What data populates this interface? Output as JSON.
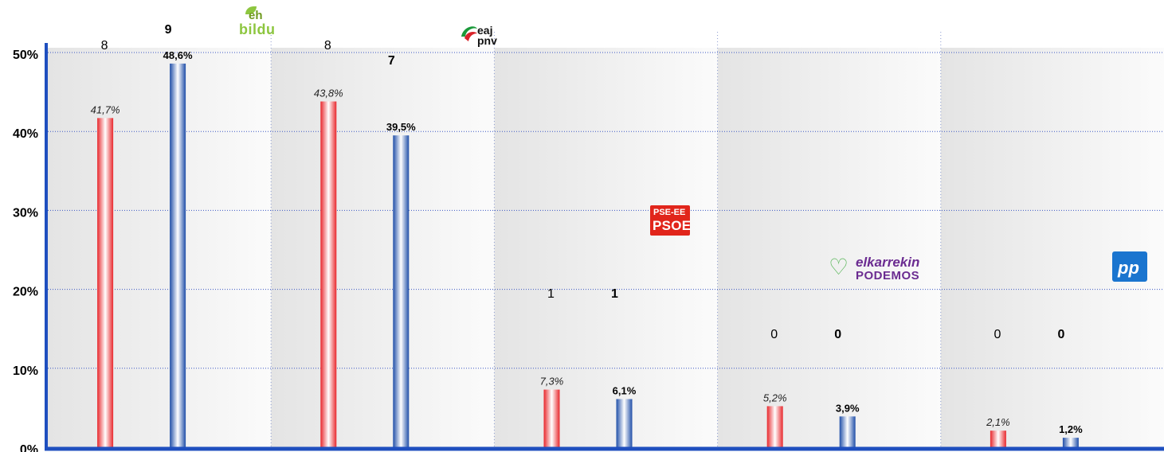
{
  "chart_data": {
    "type": "bar",
    "ylim": [
      0,
      50
    ],
    "yticks": [
      "0%",
      "10%",
      "20%",
      "30%",
      "40%",
      "50%"
    ],
    "grid": true,
    "categories": [
      "EH Bildu",
      "EAJ-PNV",
      "PSE-EE PSOE",
      "Elkarrekin Podemos",
      "PP"
    ],
    "series": [
      {
        "values": [
          41.7,
          43.8,
          7.3,
          5.2,
          2.1
        ],
        "value_labels": [
          "41,7%",
          "43,8%",
          "7,3%",
          "5,2%",
          "2,1%"
        ],
        "seats": [
          "8",
          "8",
          "1",
          "0",
          "0"
        ],
        "color": "#e8272c"
      },
      {
        "values": [
          48.6,
          39.5,
          6.1,
          3.9,
          1.2
        ],
        "value_labels": [
          "48,6%",
          "39,5%",
          "6,1%",
          "3,9%",
          "1,2%"
        ],
        "seats": [
          "9",
          "7",
          "1",
          "0",
          "0"
        ],
        "color": "#1f4ea8"
      }
    ]
  },
  "logos": {
    "bildu": {
      "line1": "eh",
      "line2": "bildu",
      "icon": "leaf-icon"
    },
    "pnv": {
      "text": "eaj\npnv",
      "icon": "flag-icon"
    },
    "psoe": {
      "line1": "PSE-EE",
      "line2": "PSOE"
    },
    "podemos": {
      "line1": "elkarrekin",
      "line2": "PODEMOS",
      "icon": "heart-icon"
    },
    "pp": {
      "text": "pp"
    }
  },
  "colors": {
    "axis": "#1f4fbf",
    "grid": "#3b57c4",
    "panel_light": "#f6f6f6",
    "panel_dark": "#e6e6e6"
  }
}
